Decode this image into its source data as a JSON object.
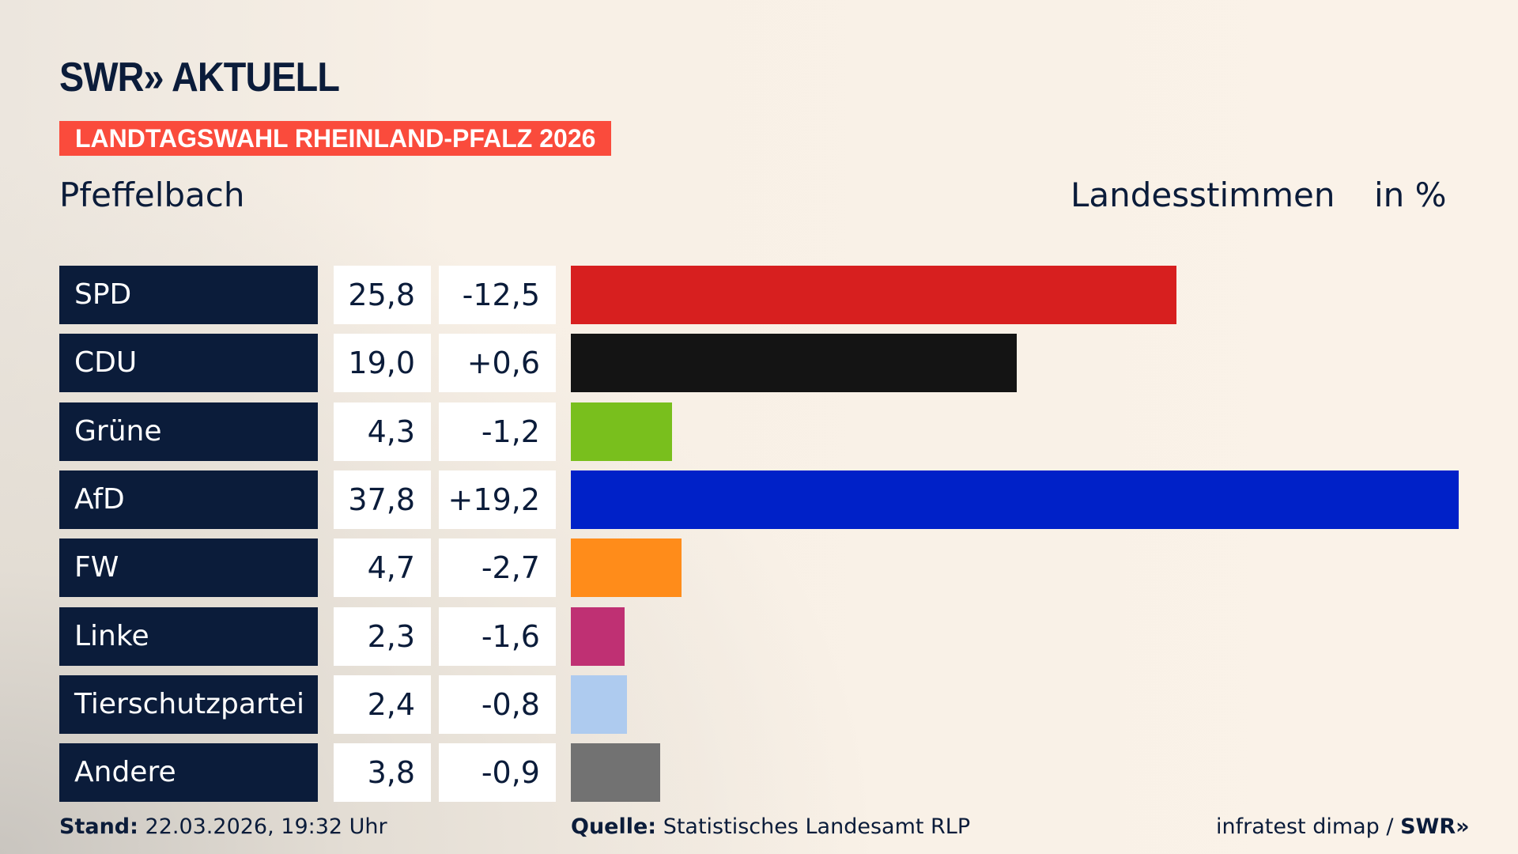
{
  "logo": "SWR» AKTUELL",
  "banner": "LANDTAGSWAHL RHEINLAND-PFALZ 2026",
  "place": "Pfeffelbach",
  "header_stimmen": "Landesstimmen",
  "header_unit": "in %",
  "chart_data": {
    "type": "bar",
    "orientation": "horizontal",
    "categories": [
      "SPD",
      "CDU",
      "Grüne",
      "AfD",
      "FW",
      "Linke",
      "Tierschutzpartei",
      "Andere"
    ],
    "values": [
      25.8,
      19.0,
      4.3,
      37.8,
      4.7,
      2.3,
      2.4,
      3.8
    ],
    "value_labels": [
      "25,8",
      "19,0",
      "4,3",
      "37,8",
      "4,7",
      "2,3",
      "2,4",
      "3,8"
    ],
    "diff_labels": [
      "-12,5",
      "+0,6",
      "-1,2",
      "+19,2",
      "-2,7",
      "-1,6",
      "-0,8",
      "-0,9"
    ],
    "colors": [
      "#d71f1f",
      "#141414",
      "#79bf1d",
      "#0021c8",
      "#ff8c1a",
      "#bf3073",
      "#aecbef",
      "#727272"
    ]
  },
  "footer": {
    "stand_label": "Stand:",
    "stand_value": "22.03.2026, 19:32 Uhr",
    "quelle_label": "Quelle:",
    "quelle_value": "Statistisches Landesamt RLP",
    "credit": "infratest dimap / ",
    "credit_brand": "SWR»"
  }
}
